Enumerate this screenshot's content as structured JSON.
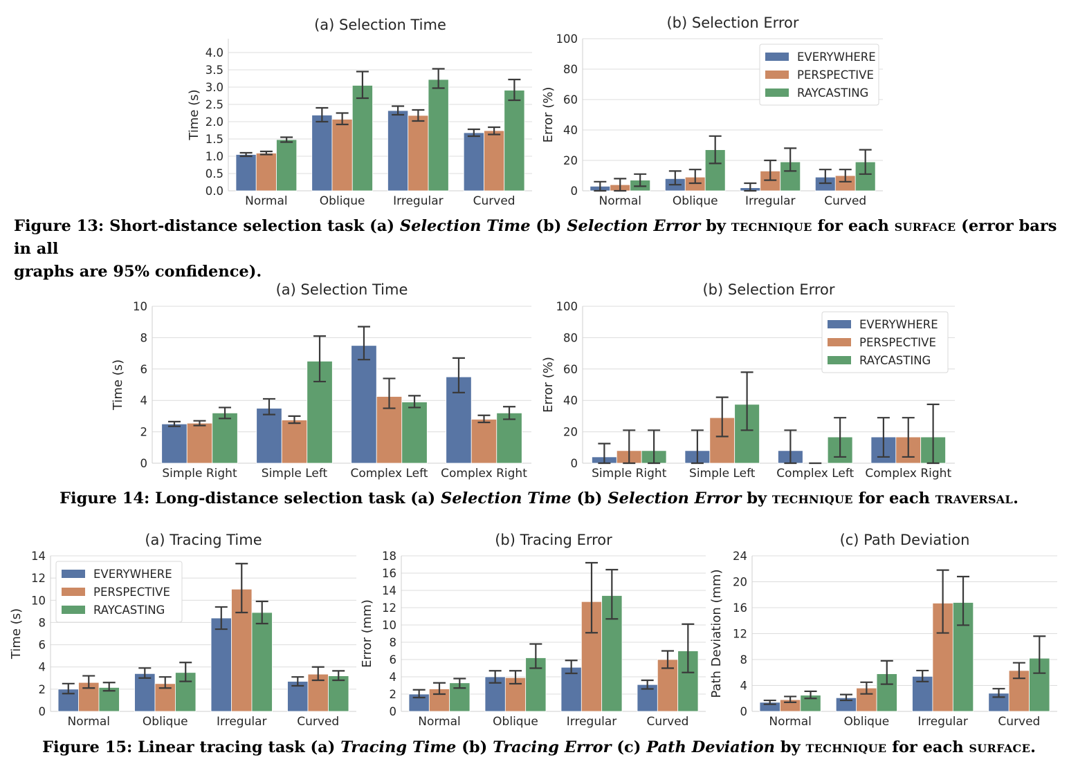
{
  "colors": {
    "everywhere": "#5875a4",
    "perspective": "#cc8963",
    "raycasting": "#5f9e6e",
    "errorbar": "#3a3a3a",
    "grid": "#dcdcdc"
  },
  "legend": [
    "EVERYWHERE",
    "PERSPECTIVE",
    "RAYCASTING"
  ],
  "captions": {
    "fig13": {
      "label": "Figure 13:",
      "text1": "Short-distance selection task (a)",
      "m1": "Selection Time",
      "text2": "(b)",
      "m2": "Selection Error",
      "text3": "by",
      "f1": "TECHNIQUE",
      "text4": "for each",
      "f2": "SURFACE",
      "text5": "(error bars in all",
      "line2": "graphs are 95% confidence)."
    },
    "fig14": {
      "label": "Figure 14:",
      "text1": "Long-distance selection task (a)",
      "m1": "Selection Time",
      "text2": "(b)",
      "m2": "Selection Error",
      "text3": "by",
      "f1": "TECHNIQUE",
      "text4": "for each",
      "f2": "TRAVERSAL",
      "text5": "."
    },
    "fig15": {
      "label": "Figure 15:",
      "text1": "Linear tracing task (a)",
      "m1": "Tracing Time",
      "text2": "(b)",
      "m2": "Tracing Error",
      "text3": "(c)",
      "m3": "Path Deviation",
      "text4": "by",
      "f1": "TECHNIQUE",
      "text5": "for each",
      "f2": "SURFACE",
      "text6": "."
    }
  },
  "chart_data": [
    {
      "type": "bar",
      "title": "(a) Selection Time",
      "ylabel": "Time (s)",
      "ylim": [
        0,
        4.4
      ],
      "yticks": [
        "0.0",
        "0.5",
        "1.0",
        "1.5",
        "2.0",
        "2.5",
        "3.0",
        "3.5",
        "4.0"
      ],
      "categories": [
        "Normal",
        "Oblique",
        "Irregular",
        "Curved"
      ],
      "legend": null,
      "series": [
        {
          "name": "EVERYWHERE",
          "values": [
            1.05,
            2.19,
            2.32,
            1.68
          ],
          "err_low": [
            1.0,
            2.0,
            2.2,
            1.58
          ],
          "err_high": [
            1.1,
            2.4,
            2.45,
            1.78
          ]
        },
        {
          "name": "PERSPECTIVE",
          "values": [
            1.09,
            2.07,
            2.18,
            1.74
          ],
          "err_low": [
            1.05,
            1.92,
            2.02,
            1.63
          ],
          "err_high": [
            1.14,
            2.25,
            2.34,
            1.84
          ]
        },
        {
          "name": "RAYCASTING",
          "values": [
            1.48,
            3.05,
            3.22,
            2.91
          ],
          "err_low": [
            1.41,
            2.68,
            2.97,
            2.62
          ],
          "err_high": [
            1.55,
            3.45,
            3.53,
            3.22
          ]
        }
      ]
    },
    {
      "type": "bar",
      "title": "(b) Selection Error",
      "ylabel": "Error (%)",
      "ylim": [
        0,
        100
      ],
      "yticks": [
        "0",
        "20",
        "40",
        "60",
        "80",
        "100"
      ],
      "categories": [
        "Normal",
        "Oblique",
        "Irregular",
        "Curved"
      ],
      "legend": "top-right",
      "series": [
        {
          "name": "EVERYWHERE",
          "values": [
            3,
            8,
            2,
            9
          ],
          "err_low": [
            0,
            4,
            0,
            5
          ],
          "err_high": [
            6,
            13,
            5,
            14
          ]
        },
        {
          "name": "PERSPECTIVE",
          "values": [
            4,
            9,
            13,
            10
          ],
          "err_low": [
            0,
            5,
            7,
            6
          ],
          "err_high": [
            8,
            14,
            20,
            14
          ]
        },
        {
          "name": "RAYCASTING",
          "values": [
            7,
            27,
            19,
            19
          ],
          "err_low": [
            3,
            18,
            13,
            11
          ],
          "err_high": [
            11,
            36,
            28,
            27
          ]
        }
      ]
    },
    {
      "type": "bar",
      "title": "(a) Selection Time",
      "ylabel": "Time (s)",
      "ylim": [
        0,
        10
      ],
      "yticks": [
        "0",
        "2",
        "4",
        "6",
        "8",
        "10"
      ],
      "categories": [
        "Simple Right",
        "Simple Left",
        "Complex Left",
        "Complex Right"
      ],
      "legend": null,
      "series": [
        {
          "name": "EVERYWHERE",
          "values": [
            2.5,
            3.5,
            7.5,
            5.5
          ],
          "err_low": [
            2.35,
            3.1,
            6.6,
            4.5
          ],
          "err_high": [
            2.65,
            4.1,
            8.7,
            6.7
          ]
        },
        {
          "name": "PERSPECTIVE",
          "values": [
            2.55,
            2.75,
            4.25,
            2.8
          ],
          "err_low": [
            2.4,
            2.55,
            3.5,
            2.6
          ],
          "err_high": [
            2.7,
            3.0,
            5.4,
            3.05
          ]
        },
        {
          "name": "RAYCASTING",
          "values": [
            3.2,
            6.5,
            3.9,
            3.2
          ],
          "err_low": [
            2.85,
            5.2,
            3.55,
            2.8
          ],
          "err_high": [
            3.55,
            8.1,
            4.3,
            3.6
          ]
        }
      ]
    },
    {
      "type": "bar",
      "title": "(b) Selection Error",
      "ylabel": "Error (%)",
      "ylim": [
        0,
        100
      ],
      "yticks": [
        "0",
        "20",
        "40",
        "60",
        "80",
        "100"
      ],
      "categories": [
        "Simple Right",
        "Simple Left",
        "Complex Left",
        "Complex Right"
      ],
      "legend": "top-right",
      "series": [
        {
          "name": "EVERYWHERE",
          "values": [
            4,
            8,
            8,
            16.7
          ],
          "err_low": [
            0,
            0,
            0,
            4
          ],
          "err_high": [
            12.5,
            21,
            21,
            29
          ]
        },
        {
          "name": "PERSPECTIVE",
          "values": [
            8,
            29,
            0,
            16.7
          ],
          "err_low": [
            0,
            17,
            0,
            4
          ],
          "err_high": [
            21,
            42,
            0,
            29
          ]
        },
        {
          "name": "RAYCASTING",
          "values": [
            8,
            37.5,
            16.7,
            16.7
          ],
          "err_low": [
            0,
            21,
            4,
            0
          ],
          "err_high": [
            21,
            58,
            29,
            37.5
          ]
        }
      ]
    },
    {
      "type": "bar",
      "title": "(a) Tracing Time",
      "ylabel": "Time (s)",
      "ylim": [
        0,
        14
      ],
      "yticks": [
        "0",
        "2",
        "4",
        "6",
        "8",
        "10",
        "12",
        "14"
      ],
      "categories": [
        "Normal",
        "Oblique",
        "Irregular",
        "Curved"
      ],
      "legend": "top-left",
      "series": [
        {
          "name": "EVERYWHERE",
          "values": [
            2.0,
            3.4,
            8.4,
            2.7
          ],
          "err_low": [
            1.6,
            3.0,
            7.4,
            2.3
          ],
          "err_high": [
            2.5,
            3.9,
            9.4,
            3.1
          ]
        },
        {
          "name": "PERSPECTIVE",
          "values": [
            2.6,
            2.5,
            11.0,
            3.35
          ],
          "err_low": [
            2.1,
            2.1,
            8.9,
            2.8
          ],
          "err_high": [
            3.2,
            3.1,
            13.3,
            4.0
          ]
        },
        {
          "name": "RAYCASTING",
          "values": [
            2.15,
            3.5,
            8.9,
            3.2
          ],
          "err_low": [
            1.85,
            2.7,
            7.9,
            2.8
          ],
          "err_high": [
            2.6,
            4.4,
            9.9,
            3.65
          ]
        }
      ]
    },
    {
      "type": "bar",
      "title": "(b) Tracing Error",
      "ylabel": "Error (mm)",
      "ylim": [
        0,
        18
      ],
      "yticks": [
        "0",
        "2",
        "4",
        "6",
        "8",
        "10",
        "12",
        "14",
        "16",
        "18"
      ],
      "categories": [
        "Normal",
        "Oblique",
        "Irregular",
        "Curved"
      ],
      "legend": null,
      "series": [
        {
          "name": "EVERYWHERE",
          "values": [
            2.0,
            4.0,
            5.1,
            3.1
          ],
          "err_low": [
            1.6,
            3.3,
            4.4,
            2.6
          ],
          "err_high": [
            2.5,
            4.7,
            5.9,
            3.6
          ]
        },
        {
          "name": "PERSPECTIVE",
          "values": [
            2.6,
            3.9,
            12.7,
            6.0
          ],
          "err_low": [
            2.0,
            3.2,
            9.1,
            5.0
          ],
          "err_high": [
            3.3,
            4.7,
            17.2,
            7.0
          ]
        },
        {
          "name": "RAYCASTING",
          "values": [
            3.3,
            6.2,
            13.4,
            7.0
          ],
          "err_low": [
            2.7,
            5.0,
            10.7,
            4.5
          ],
          "err_high": [
            3.8,
            7.8,
            16.4,
            10.1
          ]
        }
      ]
    },
    {
      "type": "bar",
      "title": "(c) Path Deviation",
      "ylabel": "Path Deviation (mm)",
      "ylim": [
        0,
        24
      ],
      "yticks": [
        "0",
        "4",
        "8",
        "12",
        "16",
        "20",
        "24"
      ],
      "categories": [
        "Normal",
        "Oblique",
        "Irregular",
        "Curved"
      ],
      "legend": null,
      "series": [
        {
          "name": "EVERYWHERE",
          "values": [
            1.4,
            2.1,
            5.4,
            2.8
          ],
          "err_low": [
            1.1,
            1.7,
            4.6,
            2.2
          ],
          "err_high": [
            1.7,
            2.6,
            6.3,
            3.5
          ]
        },
        {
          "name": "PERSPECTIVE",
          "values": [
            1.8,
            3.6,
            16.7,
            6.3
          ],
          "err_low": [
            1.4,
            2.7,
            12.1,
            5.1
          ],
          "err_high": [
            2.3,
            4.5,
            21.8,
            7.5
          ]
        },
        {
          "name": "RAYCASTING",
          "values": [
            2.5,
            5.8,
            16.8,
            8.2
          ],
          "err_low": [
            2.0,
            4.2,
            13.3,
            5.9
          ],
          "err_high": [
            3.1,
            7.8,
            20.8,
            11.6
          ]
        }
      ]
    }
  ]
}
